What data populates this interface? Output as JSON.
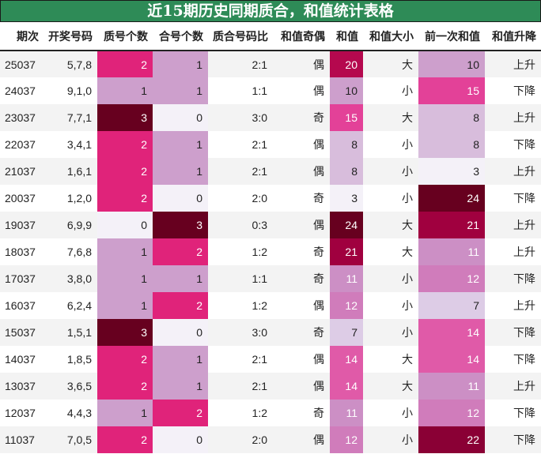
{
  "title": "近15期历史同期质合，和值统计表格",
  "columns": [
    "期次",
    "开奖号码",
    "质号个数",
    "合号个数",
    "质合号码比",
    "和值奇偶",
    "和值",
    "和值大小",
    "前一次和值",
    "和值升降"
  ],
  "rows": [
    {
      "period": "25037",
      "numbers": "5,7,8",
      "prime": "2",
      "composite": "1",
      "ratio": "2:1",
      "parity": "偶",
      "sum": "20",
      "size": "大",
      "prev_sum": "10",
      "trend": "上升"
    },
    {
      "period": "24037",
      "numbers": "9,1,0",
      "prime": "1",
      "composite": "1",
      "ratio": "1:1",
      "parity": "偶",
      "sum": "10",
      "size": "小",
      "prev_sum": "15",
      "trend": "下降"
    },
    {
      "period": "23037",
      "numbers": "7,7,1",
      "prime": "3",
      "composite": "0",
      "ratio": "3:0",
      "parity": "奇",
      "sum": "15",
      "size": "大",
      "prev_sum": "8",
      "trend": "上升"
    },
    {
      "period": "22037",
      "numbers": "3,4,1",
      "prime": "2",
      "composite": "1",
      "ratio": "2:1",
      "parity": "偶",
      "sum": "8",
      "size": "小",
      "prev_sum": "8",
      "trend": "下降"
    },
    {
      "period": "21037",
      "numbers": "1,6,1",
      "prime": "2",
      "composite": "1",
      "ratio": "2:1",
      "parity": "偶",
      "sum": "8",
      "size": "小",
      "prev_sum": "3",
      "trend": "上升"
    },
    {
      "period": "20037",
      "numbers": "1,2,0",
      "prime": "2",
      "composite": "0",
      "ratio": "2:0",
      "parity": "奇",
      "sum": "3",
      "size": "小",
      "prev_sum": "24",
      "trend": "下降"
    },
    {
      "period": "19037",
      "numbers": "6,9,9",
      "prime": "0",
      "composite": "3",
      "ratio": "0:3",
      "parity": "偶",
      "sum": "24",
      "size": "大",
      "prev_sum": "21",
      "trend": "上升"
    },
    {
      "period": "18037",
      "numbers": "7,6,8",
      "prime": "1",
      "composite": "2",
      "ratio": "1:2",
      "parity": "奇",
      "sum": "21",
      "size": "大",
      "prev_sum": "11",
      "trend": "上升"
    },
    {
      "period": "17037",
      "numbers": "3,8,0",
      "prime": "1",
      "composite": "1",
      "ratio": "1:1",
      "parity": "奇",
      "sum": "11",
      "size": "小",
      "prev_sum": "12",
      "trend": "下降"
    },
    {
      "period": "16037",
      "numbers": "6,2,4",
      "prime": "1",
      "composite": "2",
      "ratio": "1:2",
      "parity": "偶",
      "sum": "12",
      "size": "小",
      "prev_sum": "7",
      "trend": "上升"
    },
    {
      "period": "15037",
      "numbers": "1,5,1",
      "prime": "3",
      "composite": "0",
      "ratio": "3:0",
      "parity": "奇",
      "sum": "7",
      "size": "小",
      "prev_sum": "14",
      "trend": "下降"
    },
    {
      "period": "14037",
      "numbers": "1,8,5",
      "prime": "2",
      "composite": "1",
      "ratio": "2:1",
      "parity": "偶",
      "sum": "14",
      "size": "大",
      "prev_sum": "14",
      "trend": "下降"
    },
    {
      "period": "13037",
      "numbers": "3,6,5",
      "prime": "2",
      "composite": "1",
      "ratio": "2:1",
      "parity": "偶",
      "sum": "14",
      "size": "大",
      "prev_sum": "11",
      "trend": "上升"
    },
    {
      "period": "12037",
      "numbers": "4,4,3",
      "prime": "1",
      "composite": "2",
      "ratio": "1:2",
      "parity": "奇",
      "sum": "11",
      "size": "小",
      "prev_sum": "12",
      "trend": "下降"
    },
    {
      "period": "11037",
      "numbers": "7,0,5",
      "prime": "2",
      "composite": "0",
      "ratio": "2:0",
      "parity": "偶",
      "sum": "12",
      "size": "小",
      "prev_sum": "22",
      "trend": "下降"
    }
  ],
  "colors": {
    "title_bg": "#2e8b57",
    "count_0": "#f4f1f8",
    "count_1": "#cd9fcc",
    "count_2": "#e0237a",
    "count_3": "#67001f",
    "sum_scale": {
      "3": "#f4f1f8",
      "7": "#ddcce6",
      "8": "#d8bddc",
      "10": "#cd9fcc",
      "11": "#cc8fc5",
      "12": "#d07cbb",
      "14": "#e05aa8",
      "15": "#e34198",
      "20": "#b5084e",
      "21": "#a0003f",
      "22": "#8a0035",
      "24": "#67001f"
    }
  }
}
